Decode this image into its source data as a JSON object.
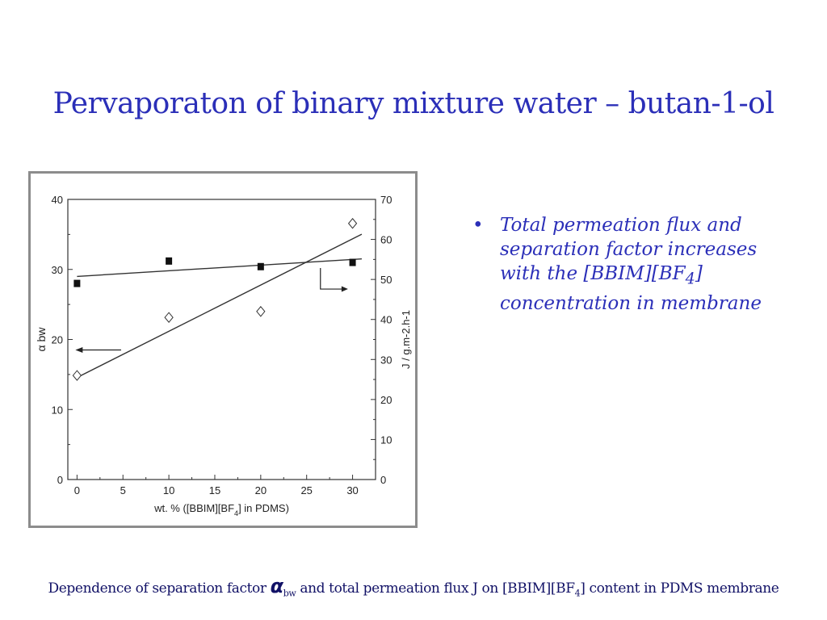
{
  "slide": {
    "title": "Pervaporaton of binary mixture water – butan-1-ol",
    "bullet": {
      "marker": "•",
      "text_before": "Total permeation flux and separation factor increases with the [BBIM][BF",
      "subscript": "4",
      "text_after": "] concentration in membrane"
    },
    "caption": {
      "part1": "Dependence of separation factor ",
      "alpha": "α",
      "alpha_sub": "bw",
      "part2": " and total permeation flux J on [BBIM][BF",
      "sub4": "4",
      "part3": "] content in PDMS membrane"
    }
  },
  "chart_data": {
    "type": "scatter",
    "xlabel_before": "wt. % ([BBIM][BF",
    "xlabel_sub": "4",
    "xlabel_after": "] in PDMS)",
    "ylabel_left": "α bw",
    "ylabel_right": "J / g.m-2.h-1",
    "xlim": [
      -1,
      32.5
    ],
    "ylim_left": [
      0,
      40
    ],
    "ylim_right": [
      0,
      70
    ],
    "x_ticks": [
      0,
      5,
      10,
      15,
      20,
      25,
      30
    ],
    "y_left_ticks": [
      0,
      10,
      20,
      30,
      40
    ],
    "y_right_ticks": [
      0,
      10,
      20,
      30,
      40,
      50,
      60,
      70
    ],
    "series": [
      {
        "axis": "left",
        "marker": "filled-square",
        "x": [
          0,
          10,
          20,
          30
        ],
        "y": [
          28.0,
          31.2,
          30.4,
          31.0
        ],
        "fit": {
          "x": [
            0,
            31
          ],
          "y": [
            29.0,
            31.5
          ]
        }
      },
      {
        "axis": "right",
        "marker": "open-diamond",
        "x": [
          0,
          10,
          20,
          30
        ],
        "y": [
          26.0,
          40.5,
          42.0,
          64.0
        ],
        "fit": {
          "x": [
            0,
            31
          ],
          "y": [
            25.5,
            61.3
          ]
        }
      }
    ],
    "grid": false
  }
}
